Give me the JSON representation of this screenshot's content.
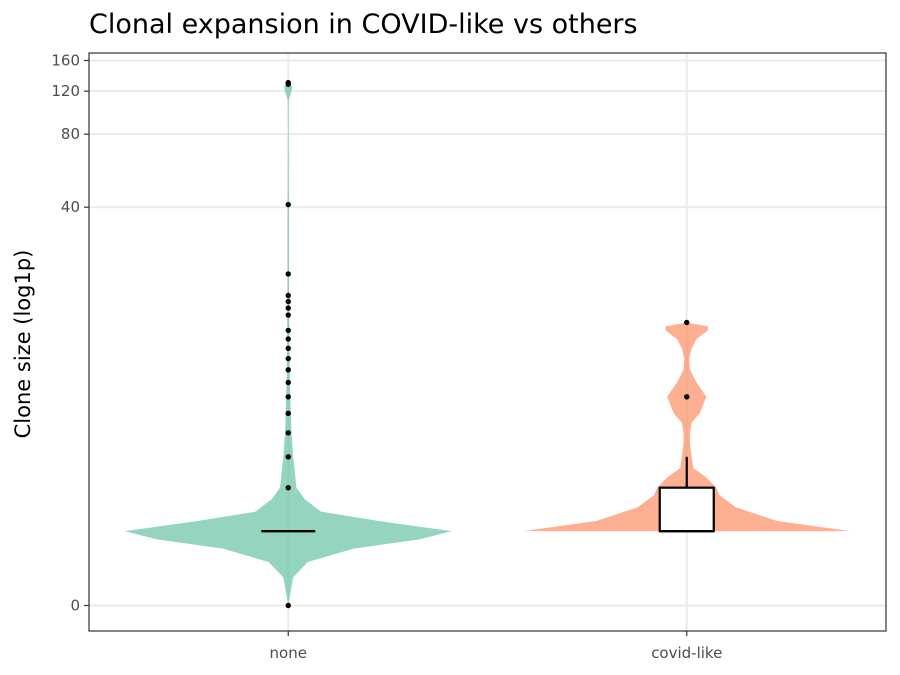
{
  "chart_data": {
    "type": "violin",
    "title": "Clonal expansion in COVID-like vs others",
    "xlabel": "",
    "ylabel": "Clone size (log1p)",
    "y_scale": "log1p",
    "y_ticks": [
      0,
      40,
      80,
      120,
      160
    ],
    "y_tick_labels": [
      "0",
      "40",
      "80",
      "120",
      "160"
    ],
    "ylim": [
      0,
      160
    ],
    "grid": true,
    "legend": "none",
    "categories": [
      "none",
      "covid-like"
    ],
    "series": [
      {
        "category": "none",
        "color": "#66c2a5",
        "fill_opacity": 0.7,
        "median": 1,
        "box": {
          "q1": 1,
          "median": 1,
          "q3": 1,
          "whisker_low": 1,
          "whisker_high": 1
        },
        "density_profile": [
          [
            0,
            0.0
          ],
          [
            0.3,
            0.03
          ],
          [
            0.5,
            0.12
          ],
          [
            0.7,
            0.4
          ],
          [
            0.85,
            0.8
          ],
          [
            1,
            1.0
          ],
          [
            1.2,
            0.55
          ],
          [
            1.4,
            0.2
          ],
          [
            1.7,
            0.1
          ],
          [
            2,
            0.05
          ],
          [
            2.5,
            0.04
          ],
          [
            3,
            0.03
          ],
          [
            4,
            0.02
          ],
          [
            5,
            0.016
          ],
          [
            7,
            0.01
          ],
          [
            10,
            0.007
          ],
          [
            15,
            0.005
          ],
          [
            25,
            0.004
          ],
          [
            40,
            0.004
          ],
          [
            60,
            0.003
          ],
          [
            90,
            0.002
          ],
          [
            110,
            0.003
          ],
          [
            120,
            0.02
          ],
          [
            125,
            0.025
          ],
          [
            128,
            0.012
          ],
          [
            130,
            0.0
          ]
        ],
        "outliers": [
          0,
          2,
          3,
          4,
          5,
          6,
          7,
          8,
          9,
          10,
          11,
          12,
          14,
          15,
          16,
          17,
          21,
          41,
          128,
          130
        ]
      },
      {
        "category": "covid-like",
        "color": "#fc8d62",
        "fill_opacity": 0.7,
        "median": 1,
        "box": {
          "q1": 1,
          "median": 1,
          "q3": 2,
          "whisker_low": 1,
          "whisker_high": 3
        },
        "density_profile": [
          [
            1,
            1.0
          ],
          [
            1.2,
            0.55
          ],
          [
            1.5,
            0.3
          ],
          [
            1.8,
            0.2
          ],
          [
            2,
            0.18
          ],
          [
            2.3,
            0.12
          ],
          [
            2.6,
            0.04
          ],
          [
            3,
            0.03
          ],
          [
            3.5,
            0.02
          ],
          [
            4,
            0.02
          ],
          [
            4.5,
            0.03
          ],
          [
            5,
            0.08
          ],
          [
            6,
            0.12
          ],
          [
            7,
            0.06
          ],
          [
            8,
            0.02
          ],
          [
            9,
            0.015
          ],
          [
            10,
            0.03
          ],
          [
            11,
            0.06
          ],
          [
            12,
            0.13
          ],
          [
            12.5,
            0.13
          ],
          [
            13,
            0.0
          ]
        ],
        "outliers": [
          6,
          13
        ]
      }
    ]
  }
}
